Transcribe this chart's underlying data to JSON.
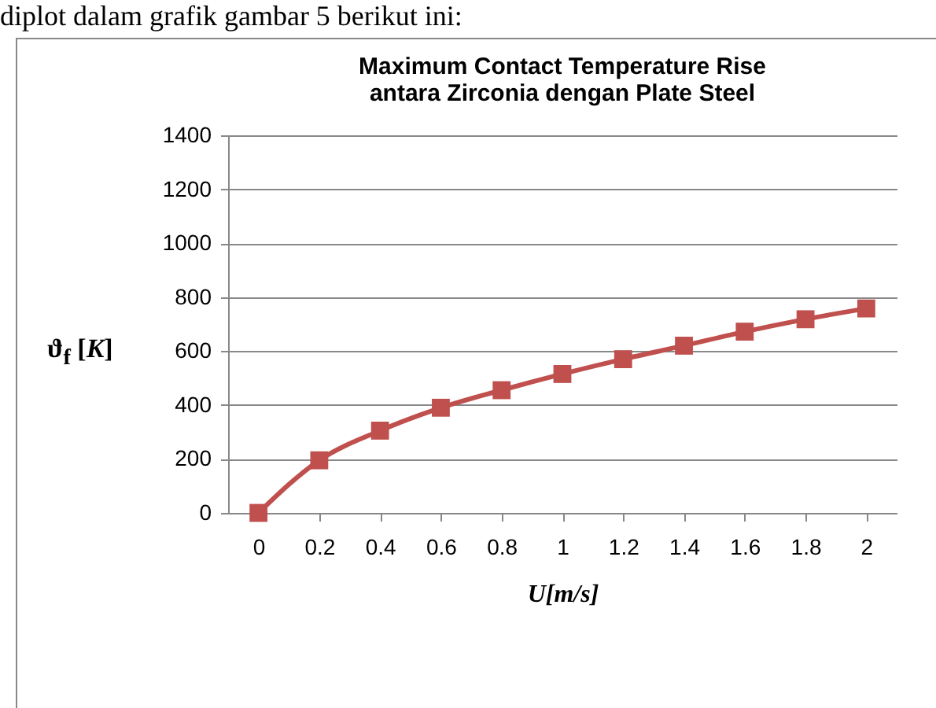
{
  "chart_data": {
    "type": "line",
    "title": "Maximum Contact Temperature Rise\nantara Zirconia dengan Plate Steel",
    "xlabel": "U[m/s]",
    "ylabel": "ϑ$_{f}$ [K]",
    "annotations": [
      "diplot dalam grafik gambar 5 berikut ini:"
    ],
    "categories": [
      "0",
      "0.2",
      "0.4",
      "0.6",
      "0.8",
      "1",
      "1.2",
      "1.4",
      "1.6",
      "1.8",
      "2"
    ],
    "series": [
      {
        "color": "#c0504d",
        "values": [
          0,
          195,
          305,
          390,
          455,
          515,
          570,
          620,
          672,
          718,
          758
        ]
      }
    ],
    "ylim": [
      0,
      1400
    ],
    "yticks": [
      0,
      200,
      400,
      600,
      800,
      1000,
      1200,
      1400
    ],
    "grid": "y",
    "marker": "square",
    "line_style": "solid",
    "legend": false
  }
}
